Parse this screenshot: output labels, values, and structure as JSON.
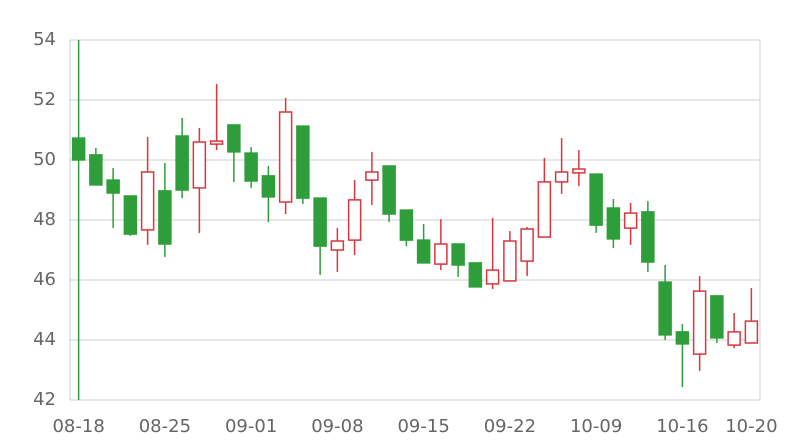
{
  "chart_data": {
    "type": "candlestick",
    "categories": [
      "08-18",
      null,
      null,
      null,
      null,
      "08-25",
      null,
      null,
      null,
      null,
      "09-01",
      null,
      null,
      null,
      null,
      "09-08",
      null,
      null,
      null,
      null,
      "09-15",
      null,
      null,
      null,
      null,
      "09-22",
      null,
      null,
      null,
      null,
      "10-09",
      null,
      null,
      null,
      null,
      "10-16",
      null,
      null,
      null,
      "10-20"
    ],
    "open": [
      50.73,
      50.17,
      49.33,
      48.8,
      47.67,
      48.97,
      50.8,
      49.07,
      50.53,
      51.17,
      50.23,
      49.47,
      48.6,
      51.13,
      48.73,
      47.0,
      47.33,
      49.33,
      49.8,
      48.33,
      47.33,
      46.53,
      47.2,
      46.57,
      45.87,
      45.97,
      46.63,
      47.43,
      49.27,
      49.57,
      49.53,
      48.4,
      47.73,
      48.27,
      45.93,
      44.27,
      43.53,
      45.47,
      43.83,
      43.9
    ],
    "high": [
      54.0,
      50.4,
      49.73,
      48.8,
      50.77,
      49.9,
      51.4,
      51.07,
      52.53,
      51.17,
      50.43,
      49.8,
      52.07,
      51.13,
      48.73,
      47.73,
      49.33,
      50.27,
      49.8,
      48.33,
      47.87,
      48.03,
      47.2,
      46.57,
      48.07,
      47.63,
      47.77,
      50.07,
      50.73,
      50.33,
      49.53,
      48.7,
      48.57,
      48.63,
      46.5,
      44.53,
      46.13,
      45.47,
      44.9,
      45.73
    ],
    "low": [
      42.0,
      49.17,
      47.73,
      47.47,
      47.17,
      46.77,
      48.73,
      47.57,
      50.33,
      49.27,
      49.07,
      47.93,
      48.2,
      48.53,
      46.17,
      46.27,
      46.83,
      48.5,
      47.93,
      47.13,
      46.57,
      46.33,
      46.1,
      45.77,
      45.7,
      45.97,
      46.13,
      47.43,
      48.87,
      49.13,
      47.57,
      47.07,
      47.17,
      46.27,
      44.0,
      42.43,
      42.97,
      43.9,
      43.73,
      43.9
    ],
    "close": [
      50.0,
      49.17,
      48.9,
      47.53,
      49.6,
      47.2,
      49.0,
      50.6,
      50.63,
      50.27,
      49.3,
      48.77,
      51.6,
      48.73,
      47.13,
      47.3,
      48.67,
      49.6,
      48.2,
      47.33,
      46.57,
      47.2,
      46.5,
      45.77,
      46.33,
      47.3,
      47.7,
      49.27,
      49.6,
      49.7,
      47.83,
      47.37,
      48.23,
      46.6,
      44.17,
      43.87,
      45.63,
      44.07,
      44.27,
      44.63
    ],
    "up_color": "#d9363e",
    "down_color": "#2e9e3a",
    "ylim": [
      42,
      54
    ],
    "yticks": [
      42,
      44,
      46,
      48,
      50,
      52,
      54
    ],
    "grid": true
  }
}
